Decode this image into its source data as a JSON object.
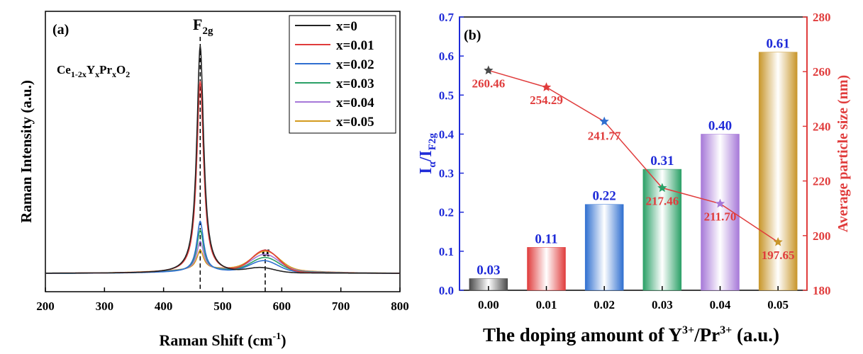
{
  "chart_data": [
    {
      "type": "line",
      "panel_label": "(a)",
      "annotation_formula": {
        "parts": [
          "Ce",
          "1-2x",
          "Y",
          "x",
          "Pr",
          "x",
          "O",
          "2"
        ]
      },
      "peak_label_f2g": {
        "main": "F",
        "sub": "2g"
      },
      "peak_label_alpha": "α",
      "xlabel": {
        "main": "Raman Shift (cm",
        "sup": "-1",
        "end": ")"
      },
      "ylabel": "Raman Intensity (a.u.)",
      "xlim": [
        200,
        800
      ],
      "xticks": [
        "200",
        "300",
        "400",
        "500",
        "600",
        "700",
        "800"
      ],
      "xtick_values": [
        200,
        300,
        400,
        500,
        600,
        700,
        800
      ],
      "yticks": [],
      "grid": false,
      "legend_position": "top-right",
      "peak_positions": [
        462,
        572
      ],
      "series": [
        {
          "name": "x=0",
          "color": "#222222",
          "f2g_height": 0.95,
          "alpha_height": 0.02,
          "alpha_center": 565
        },
        {
          "name": "x=0.01",
          "color": "#e03c3c",
          "f2g_height": 0.8,
          "alpha_height": 0.09,
          "alpha_center": 572
        },
        {
          "name": "x=0.02",
          "color": "#2f6fd0",
          "f2g_height": 0.21,
          "alpha_height": 0.045,
          "alpha_center": 570
        },
        {
          "name": "x=0.03",
          "color": "#2aa066",
          "f2g_height": 0.17,
          "alpha_height": 0.055,
          "alpha_center": 572
        },
        {
          "name": "x=0.04",
          "color": "#a678d8",
          "f2g_height": 0.12,
          "alpha_height": 0.065,
          "alpha_center": 572
        },
        {
          "name": "x=0.05",
          "color": "#d49a1e",
          "f2g_height": 0.08,
          "alpha_height": 0.075,
          "alpha_center": 573
        }
      ]
    },
    {
      "type": "bar",
      "panel_label": "(b)",
      "categories": [
        "0.00",
        "0.01",
        "0.02",
        "0.03",
        "0.04",
        "0.05"
      ],
      "values": [
        0.03,
        0.11,
        0.22,
        0.31,
        0.4,
        0.61
      ],
      "value_labels": [
        "0.03",
        "0.11",
        "0.22",
        "0.31",
        "0.40",
        "0.61"
      ],
      "bar_colors": [
        "#4a4a4a",
        "#e03c3c",
        "#2f6fd0",
        "#2aa066",
        "#a678d8",
        "#c8962a"
      ],
      "ylim": [
        0,
        0.7
      ],
      "yticks": [
        "0.0",
        "0.1",
        "0.2",
        "0.3",
        "0.4",
        "0.5",
        "0.6",
        "0.7"
      ],
      "ytick_values": [
        0.0,
        0.1,
        0.2,
        0.3,
        0.4,
        0.5,
        0.6,
        0.7
      ],
      "ylabel_left": {
        "main": "I",
        "sub1": "α",
        "mid": "/I",
        "sub2": "F2g"
      },
      "left_axis_color": "#1f2bd8",
      "xlabel": {
        "main": "The doping amount of Y",
        "sup1": "3+",
        "mid": "/Pr",
        "sup2": "3+",
        "end": " (a.u.)"
      },
      "grid": false,
      "secondary": {
        "type": "line",
        "name": "Average particle size",
        "ylabel_right": "Average particle size (nm)",
        "axis_color": "#e03c3c",
        "ylim": [
          180,
          280
        ],
        "yticks": [
          "180",
          "200",
          "220",
          "240",
          "260",
          "280"
        ],
        "ytick_values": [
          180,
          200,
          220,
          240,
          260,
          280
        ],
        "values": [
          260.46,
          254.29,
          241.77,
          217.46,
          211.7,
          197.65
        ],
        "value_labels": [
          "260.46",
          "254.29",
          "241.77",
          "217.46",
          "211.70",
          "197.65"
        ],
        "marker_colors": [
          "#4a4a4a",
          "#e03c3c",
          "#2f6fd0",
          "#2aa066",
          "#a678d8",
          "#c8962a"
        ],
        "line_color": "#e03c3c"
      }
    }
  ]
}
